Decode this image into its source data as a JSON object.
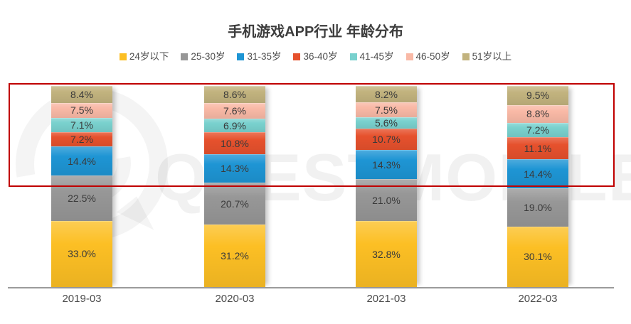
{
  "chart_data": {
    "type": "bar",
    "stacked": true,
    "title": "手机游戏APP行业 年龄分布",
    "categories": [
      "2019-03",
      "2020-03",
      "2021-03",
      "2022-03"
    ],
    "series": [
      {
        "name": "24岁以下",
        "color": "#FCBF24",
        "values": [
          33.0,
          31.2,
          32.8,
          30.1
        ]
      },
      {
        "name": "25-30岁",
        "color": "#979797",
        "values": [
          22.5,
          20.7,
          21.0,
          19.0
        ]
      },
      {
        "name": "31-35岁",
        "color": "#1E95D4",
        "values": [
          14.4,
          14.3,
          14.3,
          14.4
        ]
      },
      {
        "name": "36-40岁",
        "color": "#E6512D",
        "values": [
          7.2,
          10.8,
          10.7,
          11.1
        ]
      },
      {
        "name": "41-45岁",
        "color": "#79D1CE",
        "values": [
          7.1,
          6.9,
          5.6,
          7.2
        ]
      },
      {
        "name": "46-50岁",
        "color": "#F9B9A6",
        "values": [
          7.5,
          7.6,
          7.5,
          8.8
        ]
      },
      {
        "name": "51岁以上",
        "color": "#C2B37E",
        "values": [
          8.4,
          8.6,
          8.2,
          9.5
        ]
      }
    ],
    "value_suffix": "%",
    "label_decimals": 1,
    "legend_position": "top",
    "ylim": [
      0,
      100
    ],
    "grid": false
  },
  "annotation": {
    "shape": "rectangle",
    "color": "#C00000"
  },
  "watermark": {
    "text": "QUESTMOBILE"
  }
}
